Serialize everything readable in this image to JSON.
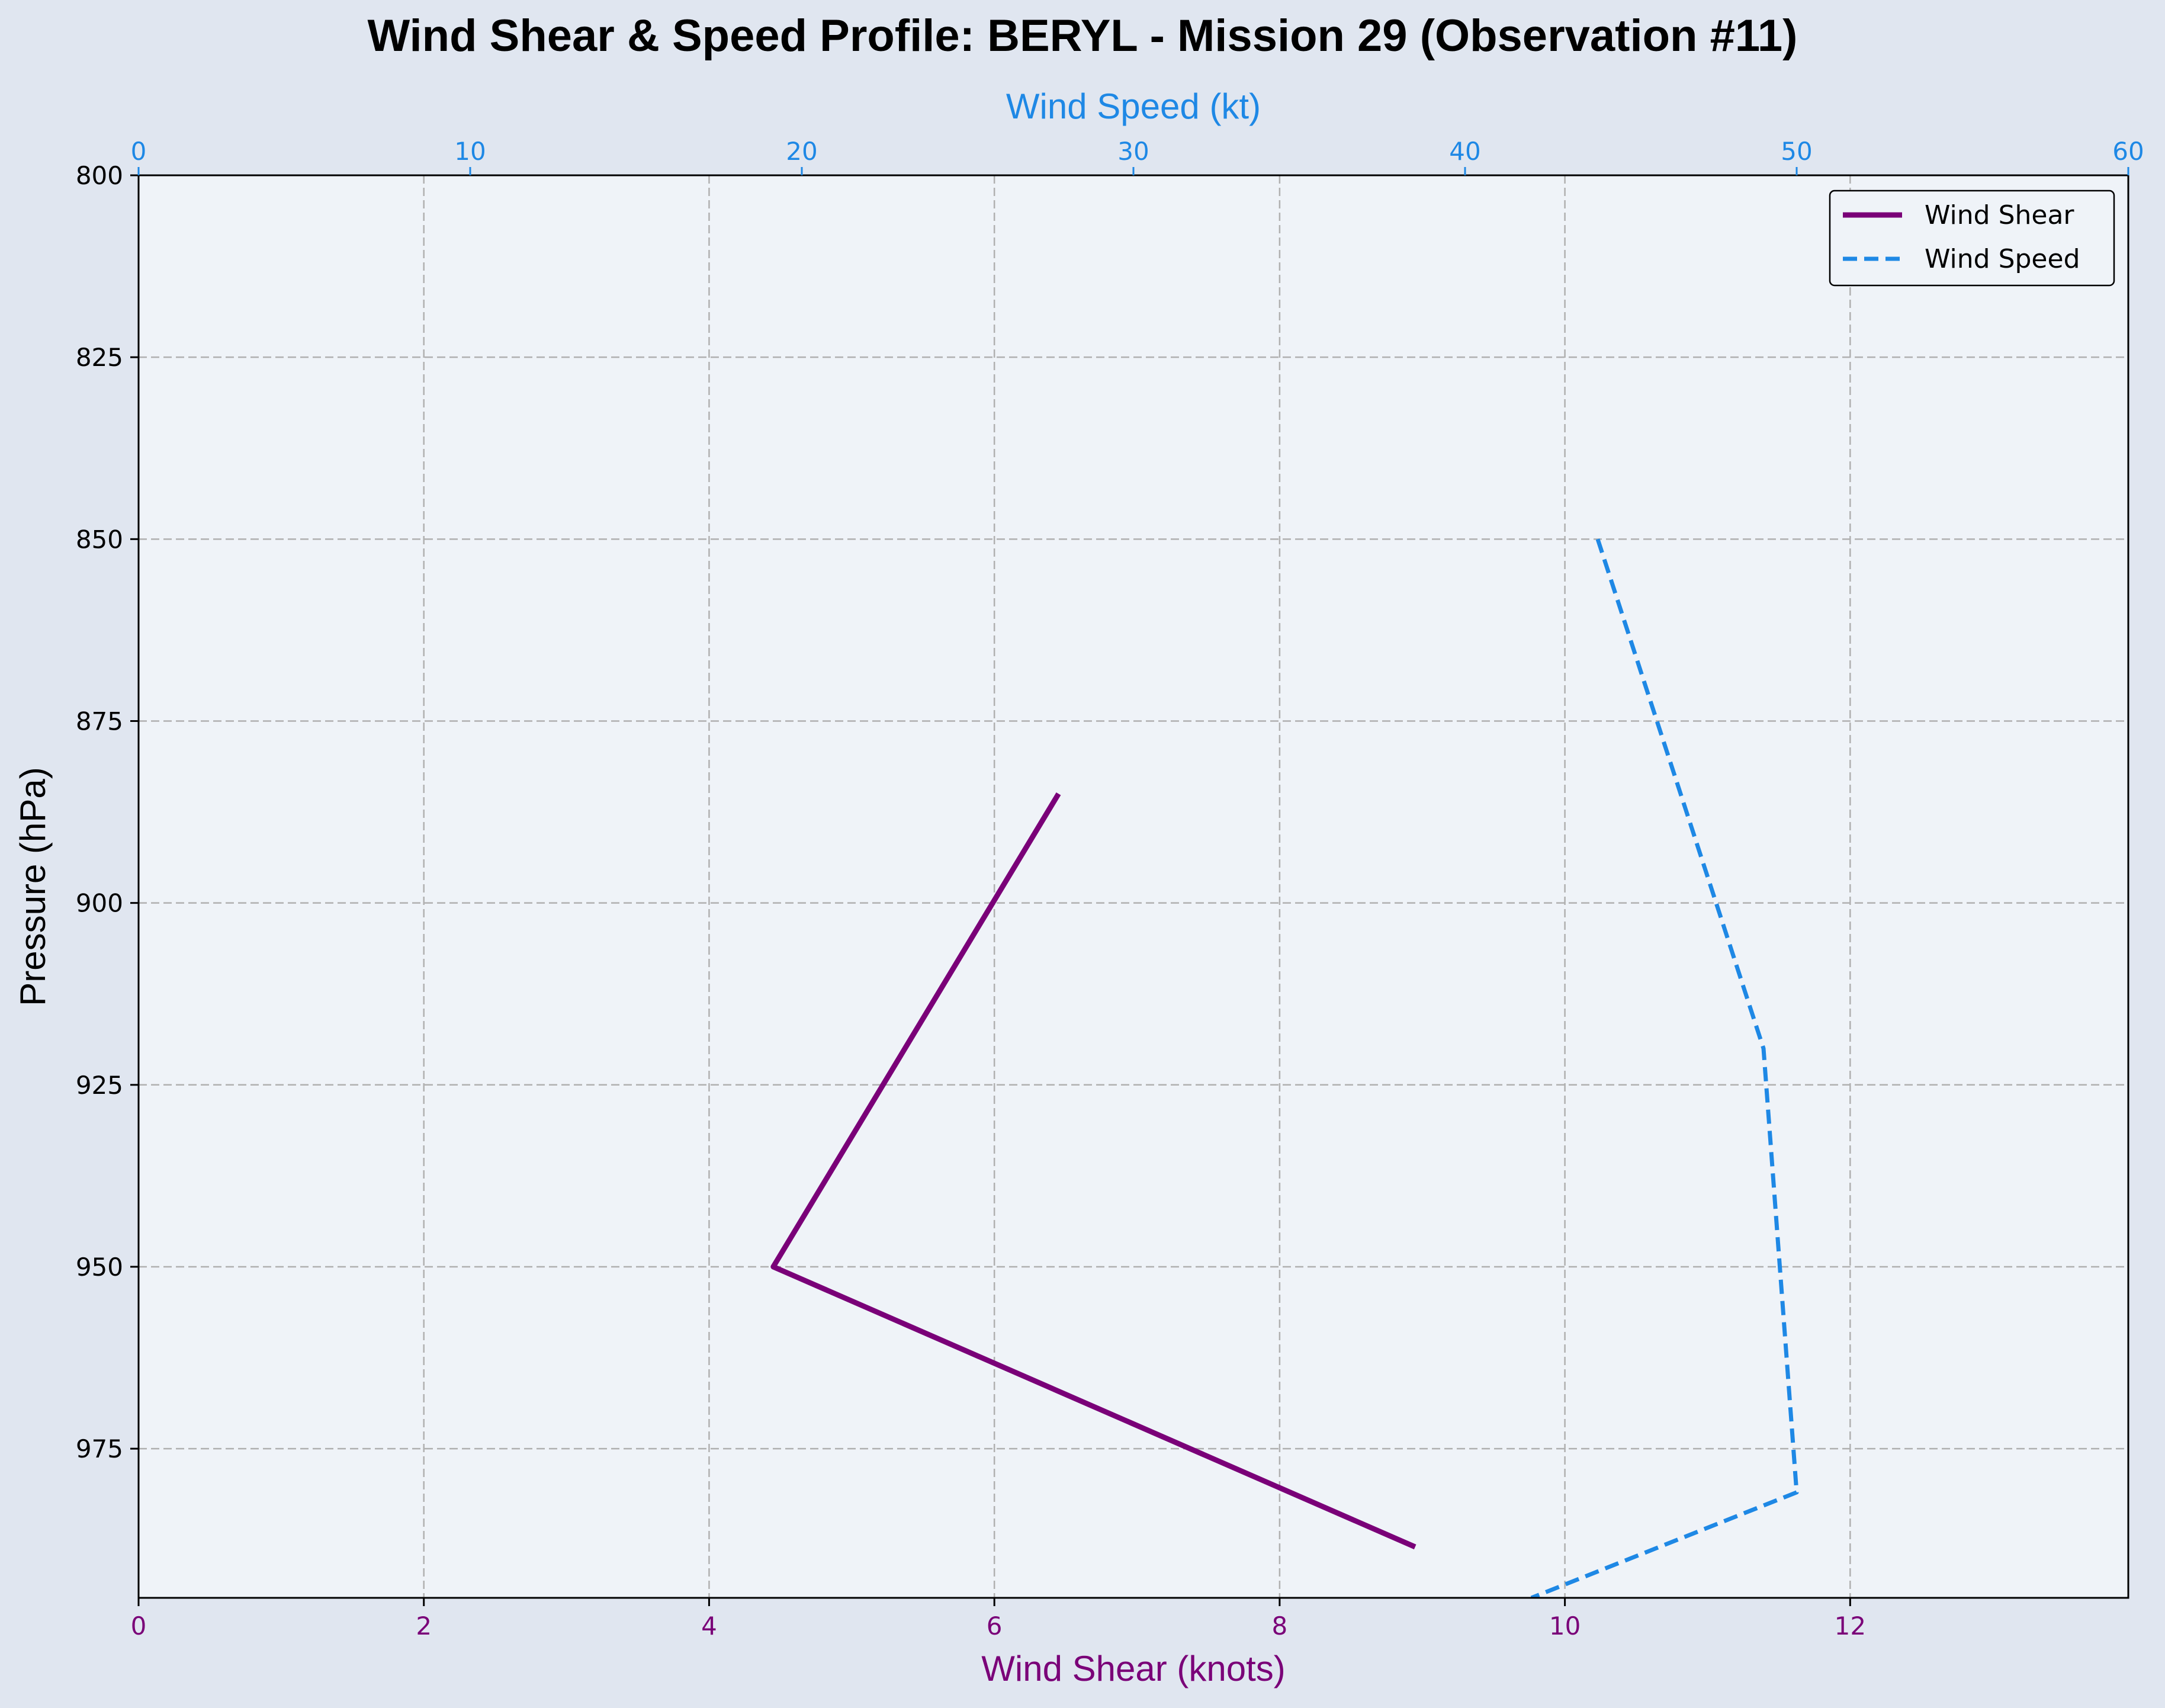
{
  "colors": {
    "figure_bg": "#e0e6f0",
    "plot_bg": "#eff3f8",
    "shear": "#7a0078",
    "speed": "#1e88e5",
    "grid": "#b0b0b0"
  },
  "chart_data": {
    "type": "line",
    "title": "Wind Shear & Speed Profile: BERYL - Mission 29 (Observation #11)",
    "ylabel": "Pressure (hPa)",
    "xlabel_bottom": "Wind Shear (knots)",
    "xlabel_top": "Wind Speed (kt)",
    "y_inverted": true,
    "ylim": [
      800,
      995.5
    ],
    "y_ticks": [
      800,
      825,
      850,
      875,
      900,
      925,
      950,
      975
    ],
    "xlim_bottom": [
      0,
      13.95
    ],
    "x_ticks_bottom": [
      0,
      2,
      4,
      6,
      8,
      10,
      12
    ],
    "xlim_top": [
      0,
      60
    ],
    "x_ticks_top": [
      0,
      10,
      20,
      30,
      40,
      50,
      60
    ],
    "grid": true,
    "legend_position": "top-right",
    "series": [
      {
        "name": "Wind Shear",
        "axis": "bottom",
        "style": "solid",
        "points": [
          {
            "x": 6.45,
            "y": 885
          },
          {
            "x": 4.45,
            "y": 950
          },
          {
            "x": 8.95,
            "y": 988.5
          }
        ]
      },
      {
        "name": "Wind Speed",
        "axis": "top",
        "style": "dashed",
        "points": [
          {
            "x": 44.0,
            "y": 850
          },
          {
            "x": 49.0,
            "y": 920
          },
          {
            "x": 50.0,
            "y": 981
          },
          {
            "x": 42.0,
            "y": 995.5
          }
        ]
      }
    ]
  }
}
